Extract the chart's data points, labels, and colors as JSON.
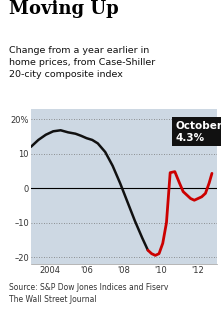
{
  "title": "Moving Up",
  "subtitle": "Change from a year earlier in\nhome prices, from Case-Shiller\n20-city composite index",
  "source": "Source: S&P Dow Jones Indices and Fiserv\nThe Wall Street Journal",
  "annotation_label": "October\n4.3%",
  "ylim": [
    -22,
    23
  ],
  "yticks": [
    -20,
    -10,
    0,
    10,
    20
  ],
  "ytick_labels": [
    "–20",
    "–10",
    "0",
    "10",
    "20%"
  ],
  "xtick_labels": [
    "2004",
    "'06",
    "'08",
    "'10",
    "'12"
  ],
  "xtick_positions": [
    2004,
    2006,
    2008,
    2010,
    2012
  ],
  "background_color": "#ffffff",
  "stripe_color": "#cdd8e3",
  "line_color_black": "#111111",
  "line_color_red": "#cc0000",
  "grid_color": "#777777",
  "zero_line_color": "#000000",
  "black_x": [
    2003.0,
    2003.4,
    2003.8,
    2004.2,
    2004.6,
    2005.0,
    2005.4,
    2005.7,
    2006.0,
    2006.3,
    2006.6,
    2007.0,
    2007.4,
    2007.8,
    2008.2,
    2008.6,
    2009.0,
    2009.3
  ],
  "black_y": [
    12.0,
    14.0,
    15.5,
    16.5,
    16.8,
    16.2,
    15.8,
    15.2,
    14.5,
    14.0,
    13.0,
    10.5,
    6.5,
    1.5,
    -4.0,
    -9.5,
    -14.5,
    -18.0
  ],
  "red_x": [
    2009.3,
    2009.5,
    2009.7,
    2009.9,
    2010.1,
    2010.3,
    2010.5,
    2010.75,
    2011.0,
    2011.2,
    2011.4,
    2011.6,
    2011.8,
    2012.0,
    2012.2,
    2012.4,
    2012.6,
    2012.75
  ],
  "red_y": [
    -18.0,
    -19.0,
    -19.5,
    -19.0,
    -16.0,
    -10.0,
    4.5,
    4.8,
    1.5,
    -1.0,
    -2.0,
    -3.0,
    -3.5,
    -3.0,
    -2.5,
    -1.5,
    1.5,
    4.3
  ]
}
